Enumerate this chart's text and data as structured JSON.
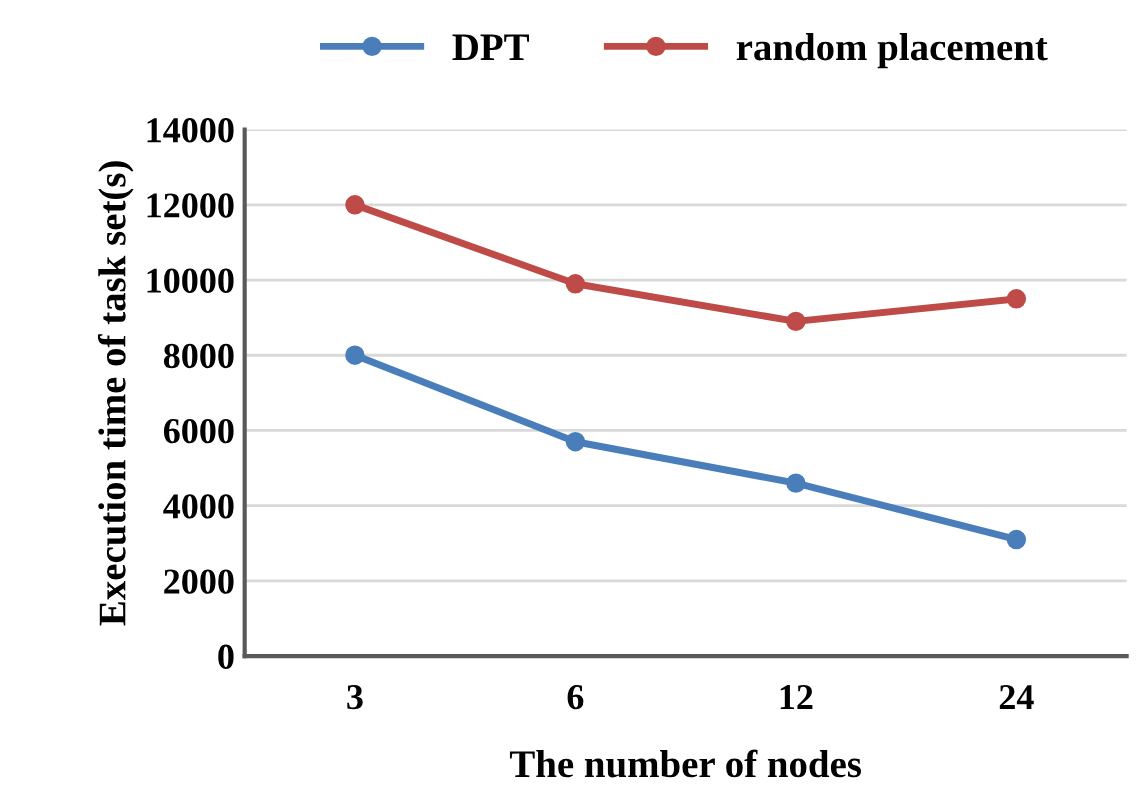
{
  "chart_data": {
    "type": "line",
    "xlabel": "The number of nodes",
    "ylabel": "Execution time of task set(s)",
    "categories": [
      "3",
      "6",
      "12",
      "24"
    ],
    "series": [
      {
        "name": "DPT",
        "color": "#4a7ebb",
        "values": [
          8000,
          5700,
          4600,
          3100
        ]
      },
      {
        "name": "random placement",
        "color": "#be4b48",
        "values": [
          12000,
          9900,
          8900,
          9500
        ]
      }
    ],
    "ylim": [
      0,
      14000
    ],
    "yticks": [
      0,
      2000,
      4000,
      6000,
      8000,
      10000,
      12000,
      14000
    ],
    "grid": "y",
    "legend": "top",
    "marker": "circle",
    "line_style": "solid"
  }
}
